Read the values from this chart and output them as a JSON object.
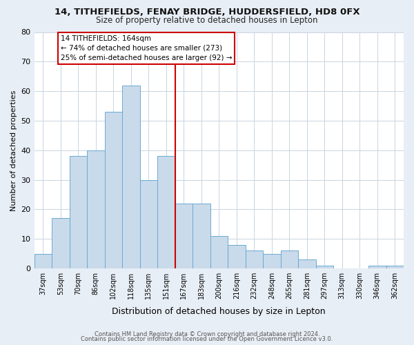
{
  "title": "14, TITHEFIELDS, FENAY BRIDGE, HUDDERSFIELD, HD8 0FX",
  "subtitle": "Size of property relative to detached houses in Lepton",
  "xlabel": "Distribution of detached houses by size in Lepton",
  "ylabel": "Number of detached properties",
  "bar_color": "#c9daea",
  "bar_edge_color": "#6aaad4",
  "categories": [
    "37sqm",
    "53sqm",
    "70sqm",
    "86sqm",
    "102sqm",
    "118sqm",
    "135sqm",
    "151sqm",
    "167sqm",
    "183sqm",
    "200sqm",
    "216sqm",
    "232sqm",
    "248sqm",
    "265sqm",
    "281sqm",
    "297sqm",
    "313sqm",
    "330sqm",
    "346sqm",
    "362sqm"
  ],
  "values": [
    5,
    17,
    38,
    40,
    53,
    62,
    30,
    38,
    22,
    22,
    11,
    8,
    6,
    5,
    6,
    3,
    1,
    0,
    0,
    1,
    1
  ],
  "vline_index": 8,
  "vline_color": "#cc0000",
  "ylim": [
    0,
    80
  ],
  "yticks": [
    0,
    10,
    20,
    30,
    40,
    50,
    60,
    70,
    80
  ],
  "annotation_title": "14 TITHEFIELDS: 164sqm",
  "annotation_line1": "← 74% of detached houses are smaller (273)",
  "annotation_line2": "25% of semi-detached houses are larger (92) →",
  "footer1": "Contains HM Land Registry data © Crown copyright and database right 2024.",
  "footer2": "Contains public sector information licensed under the Open Government Licence v3.0.",
  "bg_color": "#e8eef5",
  "plot_bg_color": "#ffffff",
  "grid_color": "#c8d4e0"
}
